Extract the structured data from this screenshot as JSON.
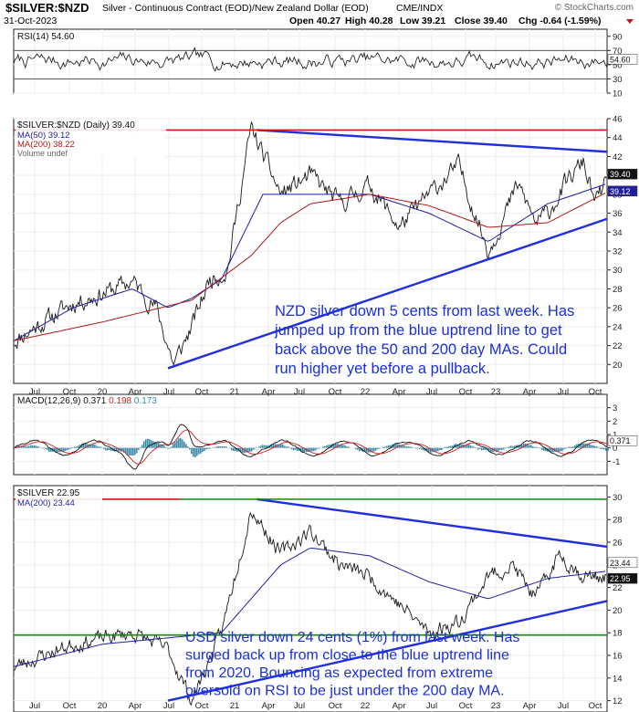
{
  "header": {
    "symbol": "$SILVER:$NZD",
    "description": "Silver - Continuous Contract (EOD)/New Zealand Dollar (EOD)",
    "exchange": "CME/INDX",
    "brand": "© StockCharts.com",
    "date": "31-Oct-2023",
    "quote": {
      "open": "Open 40.27",
      "high": "High 40.28",
      "low": "Low 39.21",
      "close": "Close 39.40",
      "chg": "Chg -0.64 (-1.59%)"
    }
  },
  "x_axis": {
    "labels": [
      "Jul",
      "Oct",
      "20",
      "Apr",
      "Jul",
      "Oct",
      "21",
      "Apr",
      "Jul",
      "Oct",
      "22",
      "Apr",
      "Jul",
      "Oct",
      "23",
      "Apr",
      "Jul",
      "Oct"
    ]
  },
  "colors": {
    "price": "#1a1a1a",
    "ma50": "#1f1fa0",
    "ma200": "#b01818",
    "trend": "#1f2fe0",
    "resistance_red": "#e01010",
    "support_green": "#118811",
    "annotation": "#1a2fd6",
    "macd_hist": "#3a8aa8",
    "macd_signal": "#d02020"
  },
  "chart_data": [
    {
      "type": "line",
      "panel": "RSI",
      "title": "RSI(14) 54.60",
      "current": 54.6,
      "current_label": "54.60",
      "ylim": [
        10,
        100
      ],
      "yticks": [
        "90",
        "70",
        "50",
        "30",
        "10"
      ],
      "guides": [
        70,
        30
      ],
      "note": "oscillating series"
    },
    {
      "type": "line",
      "panel": "SILVER:NZD",
      "title": "$SILVER:$NZD (Daily) 39.40",
      "legend": [
        "MA(50) 39.12",
        "MA(200) 38.22",
        "Volume undef"
      ],
      "ylim": [
        18,
        46
      ],
      "yticks": [
        "46",
        "44",
        "42",
        "40",
        "38",
        "36",
        "34",
        "32",
        "30",
        "28",
        "26",
        "24",
        "22",
        "20"
      ],
      "last_labels": [
        "39.40",
        "39.12",
        "38.22"
      ],
      "resistance": 44.8,
      "series": [
        {
          "name": "$SILVER:$NZD",
          "x": [
            0,
            0.05,
            0.1,
            0.15,
            0.2,
            0.24,
            0.27,
            0.3,
            0.33,
            0.36,
            0.4,
            0.45,
            0.5,
            0.55,
            0.6,
            0.65,
            0.7,
            0.75,
            0.8,
            0.85,
            0.88,
            0.9,
            0.93,
            0.96,
            0.98,
            1.0
          ],
          "values": [
            22.5,
            24.5,
            26.5,
            27.5,
            28.8,
            26,
            20,
            24,
            29,
            30,
            45,
            38,
            40,
            37,
            39,
            34.5,
            38,
            41,
            32,
            39,
            35,
            36,
            39,
            41.5,
            37,
            39.4
          ]
        },
        {
          "name": "MA(50)",
          "x": [
            0,
            0.1,
            0.2,
            0.26,
            0.3,
            0.35,
            0.42,
            0.5,
            0.6,
            0.7,
            0.8,
            0.9,
            1.0
          ],
          "values": [
            22.5,
            26,
            28,
            26,
            27,
            29,
            38,
            38,
            38,
            36,
            33,
            37,
            39.12
          ]
        },
        {
          "name": "MA(200)",
          "x": [
            0,
            0.15,
            0.3,
            0.4,
            0.45,
            0.5,
            0.6,
            0.7,
            0.8,
            0.9,
            1.0
          ],
          "values": [
            22.5,
            24.5,
            26.8,
            31.5,
            35,
            37,
            38,
            36.8,
            34.5,
            35,
            38.22
          ]
        }
      ],
      "trendlines": [
        {
          "from": [
            0.41,
            44.8
          ],
          "to": [
            1.0,
            42.5
          ]
        },
        {
          "from": [
            0.26,
            19.6
          ],
          "to": [
            1.0,
            35.4
          ]
        }
      ],
      "annotation": [
        "NZD silver down 5 cents from last week. Has",
        "jumped up from the blue uptrend line to get",
        "back above the 50 and 200 day MAs. Could",
        "run higher yet before a pullback."
      ]
    },
    {
      "type": "line",
      "panel": "MACD",
      "title": "MACD(12,26,9)",
      "values_label": [
        "0.371",
        "0.198",
        "0.173"
      ],
      "current_label": "0.371",
      "ylim": [
        -2,
        4
      ],
      "yticks": [
        "3",
        "2",
        "1",
        "0",
        "-1"
      ]
    },
    {
      "type": "line",
      "panel": "SILVER",
      "title": "$SILVER 22.95",
      "legend": [
        "MA(200) 23.44"
      ],
      "ylim": [
        11,
        31
      ],
      "yticks": [
        "30",
        "28",
        "26",
        "24",
        "22",
        "20",
        "18",
        "16",
        "14",
        "12"
      ],
      "last_labels": [
        "23.44",
        "22.95"
      ],
      "resistance": 29.8,
      "support": 17.8,
      "series": [
        {
          "name": "$SILVER",
          "x": [
            0,
            0.1,
            0.2,
            0.26,
            0.3,
            0.35,
            0.4,
            0.45,
            0.5,
            0.55,
            0.6,
            0.65,
            0.7,
            0.75,
            0.8,
            0.84,
            0.88,
            0.92,
            0.96,
            1.0
          ],
          "values": [
            15,
            17,
            18,
            16.5,
            12,
            18,
            29,
            25,
            27,
            24,
            23,
            20.5,
            18,
            19,
            23,
            24,
            21,
            25,
            23,
            22.95
          ]
        },
        {
          "name": "MA(200)",
          "x": [
            0,
            0.15,
            0.25,
            0.35,
            0.45,
            0.5,
            0.6,
            0.7,
            0.8,
            0.9,
            1.0
          ],
          "values": [
            15,
            17,
            17.5,
            18,
            24,
            25.5,
            24.8,
            22.5,
            21,
            22.8,
            23.44
          ]
        }
      ],
      "trendlines": [
        {
          "from": [
            0.41,
            29.8
          ],
          "to": [
            1.0,
            25.6
          ]
        },
        {
          "from": [
            0.26,
            12
          ],
          "to": [
            1.0,
            20.8
          ]
        }
      ],
      "annotation": [
        "USD silver down 24 cents (1%) from last week. Has",
        "surged back up from close to the blue uptrend line",
        "from 2020. Bouncing as expected from extreme",
        "oversold on RSI to be just under the 200 day MA."
      ]
    }
  ]
}
